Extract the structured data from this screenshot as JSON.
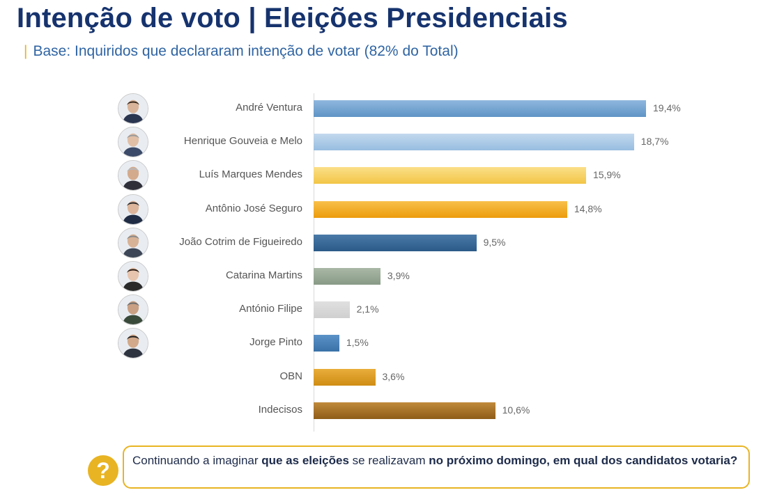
{
  "title": "Intenção de voto | Eleições Presidenciais",
  "subtitle": {
    "marker": "|",
    "text": "Base: Inquiridos que declararam intenção de votar (82% do Total)"
  },
  "chart_data": {
    "type": "bar",
    "orientation": "horizontal",
    "categories": [
      "André Ventura",
      "Henrique Gouveia e Melo",
      "Luís Marques Mendes",
      "Antônio José Seguro",
      "João Cotrim de Figueiredo",
      "Catarina Martins",
      "António Filipe",
      "Jorge Pinto",
      "OBN",
      "Indecisos"
    ],
    "values": [
      19.4,
      18.7,
      15.9,
      14.8,
      9.5,
      3.9,
      2.1,
      1.5,
      3.6,
      10.6
    ],
    "value_labels": [
      "19,4%",
      "18,7%",
      "15,9%",
      "14,8%",
      "9,5%",
      "3,9%",
      "2,1%",
      "1,5%",
      "3,6%",
      "10,6%"
    ],
    "colors": [
      [
        "#8fb7de",
        "#5f94c6"
      ],
      [
        "#c3d9ee",
        "#97bde0"
      ],
      [
        "#fbe089",
        "#f2c546"
      ],
      [
        "#f8c04a",
        "#ec9c0c"
      ],
      [
        "#4a7aa8",
        "#2b5a88"
      ],
      [
        "#a9b8a6",
        "#889a86"
      ],
      [
        "#e0e0e0",
        "#cfcfcf"
      ],
      [
        "#5b93c8",
        "#3a71a7"
      ],
      [
        "#e9ad3a",
        "#cf8d14"
      ],
      [
        "#c08a3c",
        "#8e5c17"
      ]
    ],
    "has_photo": [
      true,
      true,
      true,
      true,
      true,
      true,
      true,
      true,
      false,
      false
    ],
    "xlim": [
      0,
      20
    ],
    "grid": false,
    "legend": false
  },
  "question": {
    "icon": "?",
    "part1": "Continuando a imaginar ",
    "bold1": "que as eleições",
    "part2": " se realizavam ",
    "bold2": "no próximo domingo, em qual dos candidatos votaria?"
  }
}
